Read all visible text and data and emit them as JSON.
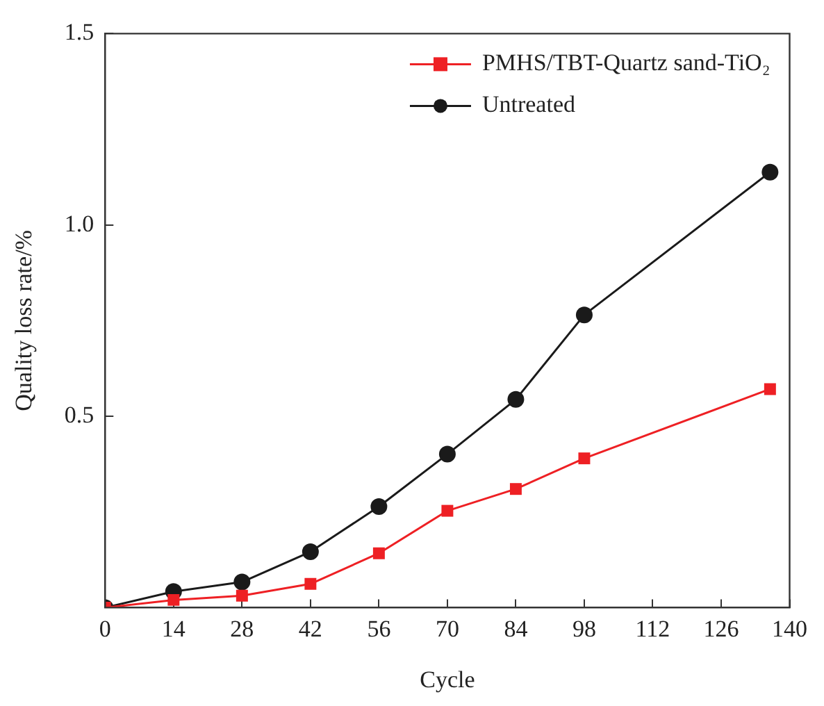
{
  "chart_data": {
    "type": "line",
    "xlabel": "Cycle",
    "ylabel": "Quality loss rate/%",
    "xlim": [
      0,
      140
    ],
    "xticks": [
      0,
      14,
      28,
      42,
      56,
      70,
      84,
      98,
      112,
      126,
      140
    ],
    "ylim": [
      0,
      1.5
    ],
    "yticks": [
      {
        "value": 0,
        "label": null
      },
      0.5,
      {
        "value": 1,
        "label": "1.0"
      },
      1.5
    ],
    "grid": false,
    "legend": "top right",
    "line_style": "solid",
    "series": [
      {
        "name": "PMHS/TBT-Quartz sand-TiO₂",
        "color": "#ee2024",
        "marker": "square",
        "x": [
          0,
          14,
          28,
          42,
          56,
          70,
          84,
          98,
          136
        ],
        "values": [
          0,
          0.02,
          0.031,
          0.062,
          0.142,
          0.253,
          0.31,
          0.39,
          0.571
        ]
      },
      {
        "name": "Untreated",
        "color": "#1a1a1a",
        "marker": "circle",
        "x": [
          0,
          14,
          28,
          42,
          56,
          70,
          84,
          98,
          136
        ],
        "values": [
          0,
          0.042,
          0.067,
          0.146,
          0.264,
          0.401,
          0.544,
          0.765,
          1.138
        ]
      }
    ]
  }
}
